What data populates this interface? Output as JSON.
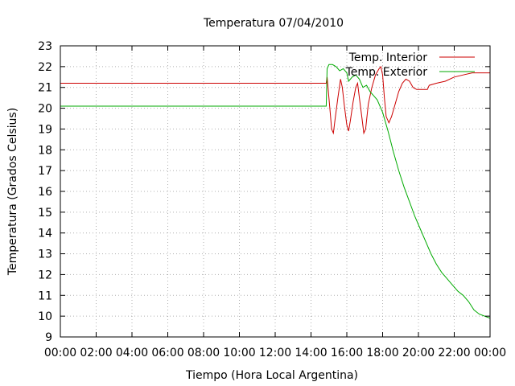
{
  "chart_data": {
    "type": "line",
    "title": "Temperatura 07/04/2010",
    "xlabel": "Tiempo (Hora Local Argentina)",
    "ylabel": "Temperatura (Grados Celsius)",
    "xlim": [
      0,
      24
    ],
    "ylim": [
      9,
      23
    ],
    "grid": true,
    "legend_position": "top-right",
    "x_ticks": [
      "00:00",
      "02:00",
      "04:00",
      "06:00",
      "08:00",
      "10:00",
      "12:00",
      "14:00",
      "16:00",
      "18:00",
      "20:00",
      "22:00",
      "00:00"
    ],
    "y_ticks": [
      "9",
      "10",
      "11",
      "12",
      "13",
      "14",
      "15",
      "16",
      "17",
      "18",
      "19",
      "20",
      "21",
      "22",
      "23"
    ],
    "series": [
      {
        "name": "Temp. Interior",
        "color": "#cc0000",
        "points": [
          [
            0,
            21.2
          ],
          [
            14.85,
            21.2
          ],
          [
            14.9,
            21.5
          ],
          [
            15.05,
            20.0
          ],
          [
            15.15,
            19.0
          ],
          [
            15.25,
            18.8
          ],
          [
            15.35,
            19.5
          ],
          [
            15.5,
            20.5
          ],
          [
            15.65,
            21.4
          ],
          [
            15.75,
            21.0
          ],
          [
            15.85,
            20.2
          ],
          [
            16.0,
            19.2
          ],
          [
            16.1,
            18.9
          ],
          [
            16.2,
            19.4
          ],
          [
            16.35,
            20.3
          ],
          [
            16.5,
            21.0
          ],
          [
            16.6,
            21.2
          ],
          [
            16.7,
            20.5
          ],
          [
            16.85,
            19.5
          ],
          [
            16.95,
            18.8
          ],
          [
            17.05,
            19.0
          ],
          [
            17.2,
            20.2
          ],
          [
            17.4,
            21.0
          ],
          [
            17.6,
            21.6
          ],
          [
            17.8,
            21.9
          ],
          [
            17.9,
            22.0
          ],
          [
            18.0,
            21.6
          ],
          [
            18.1,
            20.5
          ],
          [
            18.2,
            19.6
          ],
          [
            18.35,
            19.3
          ],
          [
            18.5,
            19.6
          ],
          [
            18.7,
            20.2
          ],
          [
            18.9,
            20.8
          ],
          [
            19.1,
            21.2
          ],
          [
            19.3,
            21.4
          ],
          [
            19.5,
            21.3
          ],
          [
            19.7,
            21.0
          ],
          [
            19.9,
            20.9
          ],
          [
            20.5,
            20.9
          ],
          [
            20.6,
            21.1
          ],
          [
            21.0,
            21.2
          ],
          [
            21.5,
            21.3
          ],
          [
            22.0,
            21.5
          ],
          [
            22.5,
            21.6
          ],
          [
            23.0,
            21.7
          ],
          [
            24.0,
            21.7
          ]
        ]
      },
      {
        "name": "Temp. Exterior",
        "color": "#00aa00",
        "points": [
          [
            0,
            20.1
          ],
          [
            14.85,
            20.1
          ],
          [
            14.9,
            21.9
          ],
          [
            15.0,
            22.1
          ],
          [
            15.2,
            22.1
          ],
          [
            15.4,
            22.0
          ],
          [
            15.6,
            21.8
          ],
          [
            15.8,
            21.9
          ],
          [
            16.0,
            21.7
          ],
          [
            16.1,
            21.3
          ],
          [
            16.3,
            21.5
          ],
          [
            16.5,
            21.6
          ],
          [
            16.7,
            21.4
          ],
          [
            16.9,
            21.0
          ],
          [
            17.1,
            21.1
          ],
          [
            17.3,
            20.8
          ],
          [
            17.5,
            20.6
          ],
          [
            17.7,
            20.4
          ],
          [
            18.0,
            19.8
          ],
          [
            18.3,
            18.9
          ],
          [
            18.6,
            17.9
          ],
          [
            18.9,
            17.0
          ],
          [
            19.2,
            16.2
          ],
          [
            19.5,
            15.5
          ],
          [
            19.8,
            14.8
          ],
          [
            20.1,
            14.2
          ],
          [
            20.4,
            13.6
          ],
          [
            20.7,
            13.0
          ],
          [
            21.0,
            12.5
          ],
          [
            21.3,
            12.1
          ],
          [
            21.6,
            11.8
          ],
          [
            21.9,
            11.5
          ],
          [
            22.2,
            11.2
          ],
          [
            22.5,
            11.0
          ],
          [
            22.8,
            10.7
          ],
          [
            23.1,
            10.3
          ],
          [
            23.4,
            10.1
          ],
          [
            23.7,
            10.0
          ],
          [
            24.0,
            9.9
          ]
        ]
      }
    ]
  }
}
